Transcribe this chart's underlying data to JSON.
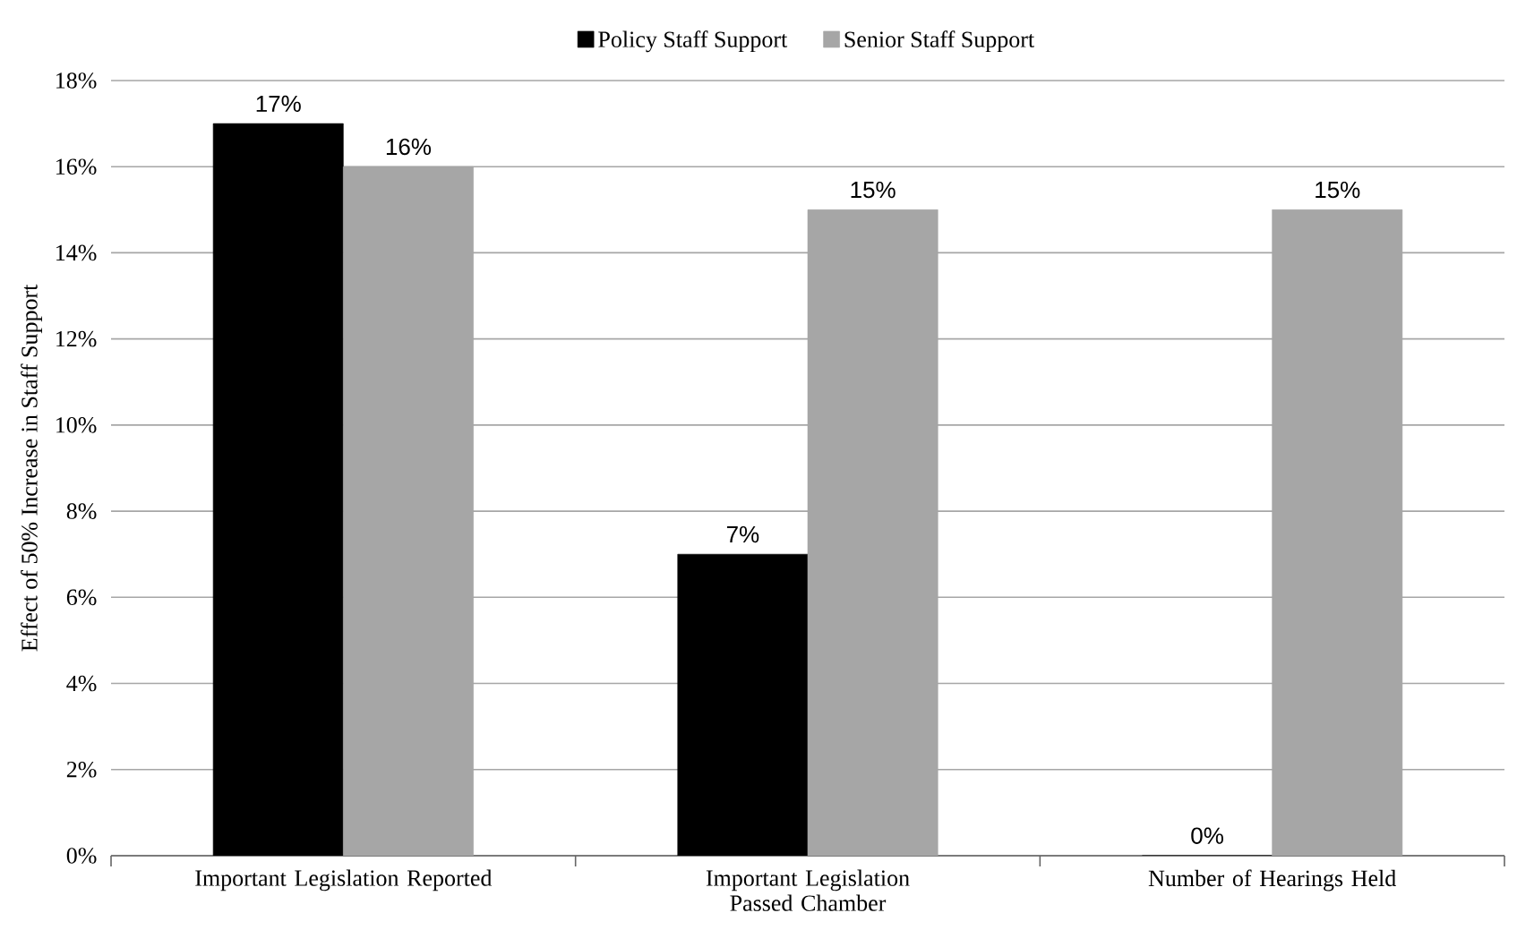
{
  "chart_data": {
    "type": "bar",
    "ylabel": "Effect of 50% Increase in Staff Support",
    "categories": [
      "Important Legislation Reported",
      "Important Legislation Passed Chamber",
      "Number of Hearings Held"
    ],
    "series": [
      {
        "name": "Policy Staff Support",
        "color": "#000000",
        "values": [
          17,
          7,
          0
        ],
        "value_labels": [
          "17%",
          "7%",
          "0%"
        ]
      },
      {
        "name": "Senior Staff Support",
        "color": "#a6a6a6",
        "values": [
          16,
          15,
          15
        ],
        "value_labels": [
          "16%",
          "15%",
          "15%"
        ]
      }
    ],
    "ylim": [
      0,
      18
    ],
    "yticks": [
      {
        "value": 0,
        "label": "0%"
      },
      {
        "value": 2,
        "label": "2%"
      },
      {
        "value": 4,
        "label": "4%"
      },
      {
        "value": 6,
        "label": "6%"
      },
      {
        "value": 8,
        "label": "8%"
      },
      {
        "value": 10,
        "label": "10%"
      },
      {
        "value": 12,
        "label": "12%"
      },
      {
        "value": 14,
        "label": "14%"
      },
      {
        "value": 16,
        "label": "16%"
      },
      {
        "value": 18,
        "label": "18%"
      }
    ],
    "grid": "y",
    "legend": "top"
  }
}
